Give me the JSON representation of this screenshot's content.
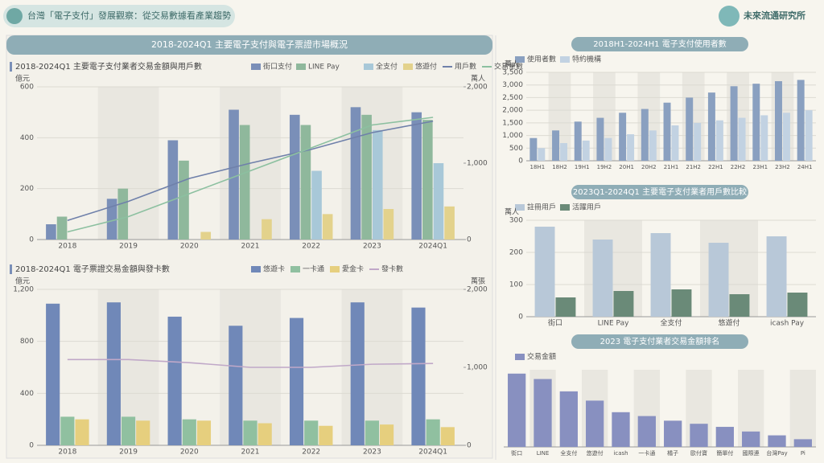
{
  "header": {
    "title": "台灣「電子支付」發展觀察：從交易數據看產業趨勢",
    "brand": "未來流通研究所",
    "section": "2018-2024Q1 主要電子支付與電子票證市場概況"
  },
  "chart_data": [
    {
      "type": "bar",
      "title": "2018-2024Q1 主要電子支付業者交易金額與用戶數",
      "y_label": "億元",
      "y2_label": "萬人",
      "categories": [
        "2018",
        "2019",
        "2020",
        "2021",
        "2022",
        "2023",
        "2024Q1"
      ],
      "ylim": [
        0,
        600
      ],
      "yticks": [
        0,
        200,
        400,
        600
      ],
      "y2lim": [
        0,
        2000
      ],
      "y2ticks": [
        0,
        {
          "value": 1000,
          "label": "1,000"
        },
        {
          "value": 2000,
          "label": "2,000"
        }
      ],
      "series": [
        {
          "name": "街口支付",
          "color": "#7a8fb8",
          "values": [
            60,
            160,
            390,
            510,
            490,
            520,
            500
          ]
        },
        {
          "name": "LINE Pay",
          "color": "#8fb89c",
          "values": [
            90,
            200,
            310,
            450,
            450,
            490,
            470
          ]
        },
        {
          "name": "全支付",
          "color": "#a8c8d8",
          "values": [
            null,
            null,
            null,
            null,
            270,
            430,
            300
          ]
        },
        {
          "name": "悠遊付",
          "color": "#e3d28c",
          "values": [
            null,
            null,
            30,
            80,
            100,
            120,
            130
          ]
        },
        {
          "name": "用戶數",
          "color": "#6f80aa",
          "kind": "line",
          "axis": "y2",
          "values": [
            250,
            500,
            800,
            1000,
            1180,
            1400,
            1550
          ]
        },
        {
          "name": "交易筆數",
          "color": "#8cc0a0",
          "kind": "line",
          "axis": "y2",
          "values": [
            100,
            300,
            600,
            900,
            1200,
            1500,
            1600
          ]
        }
      ]
    },
    {
      "type": "bar",
      "title": "2018-2024Q1 電子票證交易金額與發卡數",
      "y_label": "億元",
      "y2_label": "萬張",
      "categories": [
        "2018",
        "2019",
        "2020",
        "2021",
        "2022",
        "2023",
        "2024Q1"
      ],
      "ylim": [
        0,
        1200
      ],
      "yticks": [
        0,
        400,
        800,
        {
          "value": 1200,
          "label": "1,200"
        }
      ],
      "y2lim": [
        0,
        2000
      ],
      "y2ticks": [
        0,
        {
          "value": 1000,
          "label": "1,000"
        },
        {
          "value": 2000,
          "label": "2,000"
        }
      ],
      "series": [
        {
          "name": "悠遊卡",
          "color": "#7088b8",
          "values": [
            1090,
            1100,
            990,
            920,
            980,
            1100,
            1060
          ]
        },
        {
          "name": "一卡通",
          "color": "#90c0a0",
          "values": [
            220,
            220,
            200,
            190,
            190,
            190,
            200
          ]
        },
        {
          "name": "愛金卡",
          "color": "#e6cf7e",
          "values": [
            200,
            190,
            190,
            170,
            150,
            160,
            140
          ]
        },
        {
          "name": "發卡數",
          "color": "#c0a8c8",
          "kind": "line",
          "axis": "y2",
          "values": [
            1100,
            1100,
            1060,
            1000,
            1000,
            1040,
            1050
          ]
        }
      ]
    },
    {
      "type": "bar",
      "title": "2018H1-2024H1 電子支付使用者數",
      "y_label": "萬人",
      "categories": [
        "18H1",
        "18H2",
        "19H1",
        "19H2",
        "20H1",
        "20H2",
        "21H1",
        "21H2",
        "22H1",
        "22H2",
        "23H1",
        "23H2",
        "24H1"
      ],
      "ylim": [
        0,
        3500
      ],
      "yticks": [
        0,
        500,
        {
          "value": 1000,
          "label": "1,000"
        },
        {
          "value": 1500,
          "label": "1,500"
        },
        {
          "value": 2000,
          "label": "2,000"
        },
        {
          "value": 2500,
          "label": "2,500"
        },
        {
          "value": 3000,
          "label": "3,000"
        },
        {
          "value": 3500,
          "label": "3,500"
        }
      ],
      "series": [
        {
          "name": "使用者數",
          "color": "#8aa0c0",
          "values": [
            900,
            1200,
            1550,
            1700,
            1900,
            2050,
            2300,
            2500,
            2700,
            2950,
            3050,
            3150,
            3200
          ]
        },
        {
          "name": "特約機構",
          "color": "#c2d2e2",
          "values": [
            500,
            700,
            800,
            900,
            1050,
            1200,
            1400,
            1500,
            1600,
            1700,
            1800,
            1900,
            2000
          ]
        }
      ]
    },
    {
      "type": "bar",
      "title": "2023Q1-2024Q1 主要電子支付業者用戶數比較",
      "y_label": "萬人",
      "categories": [
        "街口",
        "LINE Pay",
        "全支付",
        "悠遊付",
        "icash Pay"
      ],
      "ylim": [
        0,
        300
      ],
      "yticks": [
        0,
        100,
        200,
        300
      ],
      "series": [
        {
          "name": "註冊用戶",
          "color": "#b8c8d8",
          "values": [
            280,
            240,
            260,
            230,
            250
          ]
        },
        {
          "name": "活躍用戶",
          "color": "#6a8a78",
          "values": [
            60,
            80,
            85,
            70,
            75
          ]
        }
      ]
    },
    {
      "type": "bar",
      "title": "2023 電子支付業者交易金額排名",
      "categories": [
        "街口",
        "LINE",
        "全支付",
        "悠遊付",
        "icash",
        "一卡通",
        "橘子",
        "歐付寶",
        "簡單付",
        "國際連",
        "台灣Pay",
        "Pi"
      ],
      "ylim": [
        0,
        100
      ],
      "series": [
        {
          "name": "交易金額",
          "color": "#8890c0",
          "values": [
            95,
            88,
            72,
            60,
            45,
            40,
            34,
            30,
            26,
            20,
            15,
            10
          ]
        }
      ]
    }
  ]
}
